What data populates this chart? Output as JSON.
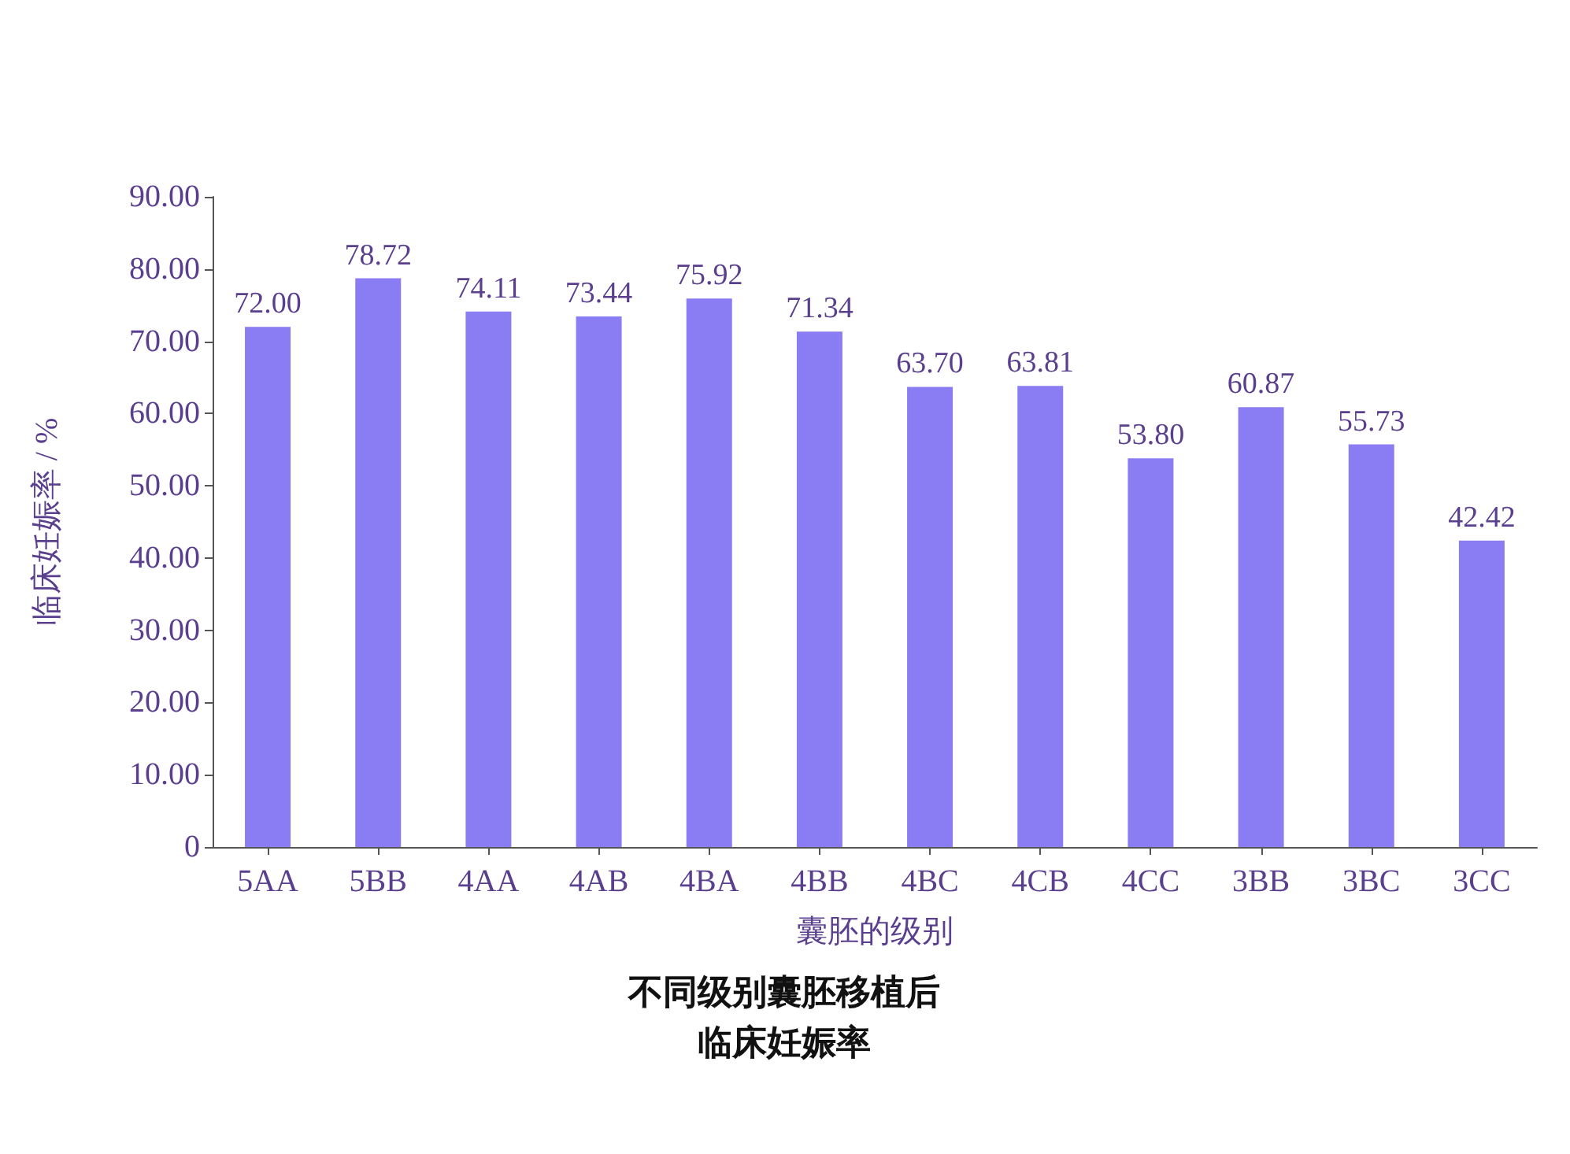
{
  "chart_data": {
    "type": "bar",
    "title": "不同级别囊胚移植后临床妊娠率",
    "xlabel": "囊胚的级别",
    "ylabel": "临床妊娠率 / %",
    "categories": [
      "5AA",
      "5BB",
      "4AA",
      "4AB",
      "4BA",
      "4BB",
      "4BC",
      "4CB",
      "4CC",
      "3BB",
      "3BC",
      "3CC"
    ],
    "values": [
      72.0,
      78.72,
      74.11,
      73.44,
      75.92,
      71.34,
      63.7,
      63.81,
      53.8,
      60.87,
      55.73,
      42.42
    ],
    "value_labels": [
      "72.00",
      "78.72",
      "74.11",
      "73.44",
      "75.92",
      "71.34",
      "63.70",
      "63.81",
      "53.80",
      "60.87",
      "55.73",
      "42.42"
    ],
    "color": "#8a7cf2",
    "ylim": [
      0,
      90
    ],
    "yticks": [
      0,
      {
        "value": 10,
        "label": "10.00"
      },
      {
        "value": 20,
        "label": "20.00"
      },
      {
        "value": 30,
        "label": "30.00"
      },
      {
        "value": 40,
        "label": "40.00"
      },
      {
        "value": 50,
        "label": "50.00"
      },
      {
        "value": 60,
        "label": "60.00"
      },
      {
        "value": 70,
        "label": "70.00"
      },
      {
        "value": 80,
        "label": "80.00"
      },
      {
        "value": 90,
        "label": "90.00"
      }
    ],
    "grid": false
  }
}
